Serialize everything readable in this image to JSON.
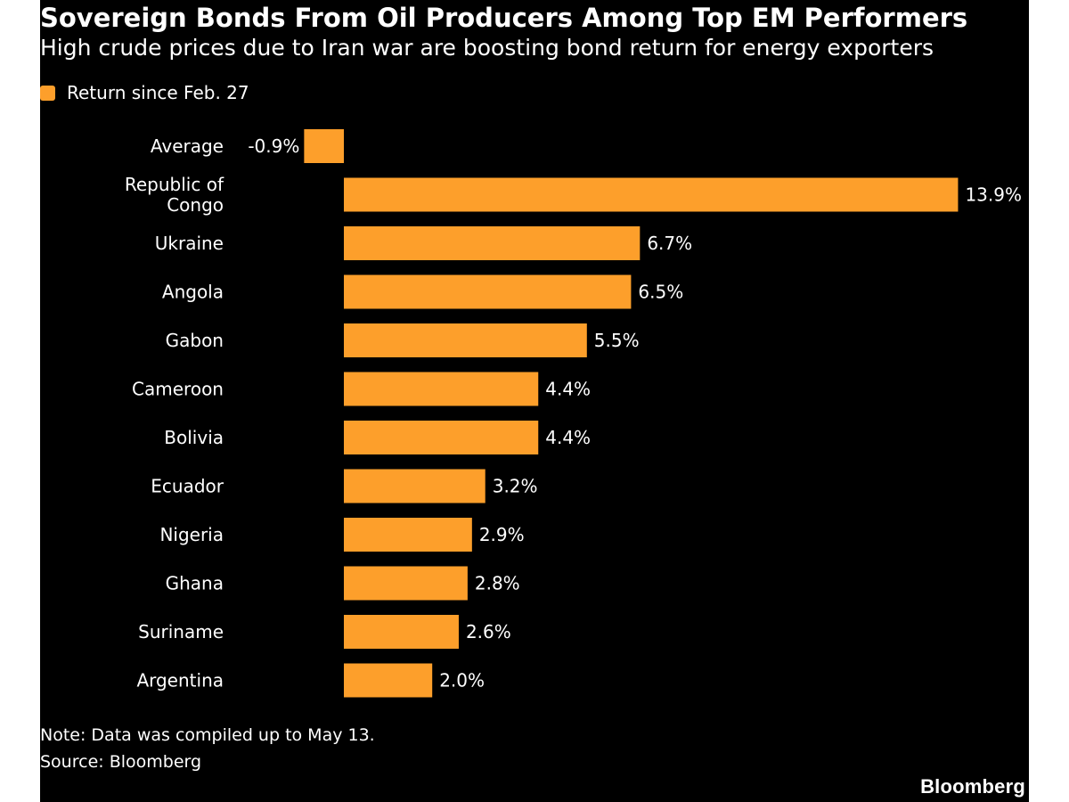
{
  "colors": {
    "bar": "#fd9f2b",
    "background": "#000000",
    "text": "#ffffff"
  },
  "header": {
    "title": "Sovereign Bonds From Oil Producers Among Top EM Performers",
    "subtitle": "High crude prices due to Iran war are boosting bond return for energy exporters"
  },
  "legend": {
    "label": "Return since Feb. 27"
  },
  "chart_data": {
    "type": "bar",
    "orientation": "horizontal",
    "categories": [
      [
        "Average"
      ],
      [
        "Republic of",
        "Congo"
      ],
      [
        "Ukraine"
      ],
      [
        "Angola"
      ],
      [
        "Gabon"
      ],
      [
        "Cameroon"
      ],
      [
        "Bolivia"
      ],
      [
        "Ecuador"
      ],
      [
        "Nigeria"
      ],
      [
        "Ghana"
      ],
      [
        "Suriname"
      ],
      [
        "Argentina"
      ]
    ],
    "series": [
      {
        "name": "Return since Feb. 27",
        "values": [
          -0.9,
          13.9,
          6.7,
          6.5,
          5.5,
          4.4,
          4.4,
          3.2,
          2.9,
          2.8,
          2.6,
          2.0
        ],
        "labels": [
          "-0.9%",
          "13.9%",
          "6.7%",
          "6.5%",
          "5.5%",
          "4.4%",
          "4.4%",
          "3.2%",
          "2.9%",
          "2.8%",
          "2.6%",
          "2.0%"
        ]
      }
    ],
    "xlim": [
      -0.9,
      13.9
    ],
    "grid": false,
    "legend_position": "top-left"
  },
  "footer": {
    "note": "Note: Data was compiled up to May 13.",
    "source": "Source: Bloomberg",
    "brand": "Bloomberg"
  }
}
